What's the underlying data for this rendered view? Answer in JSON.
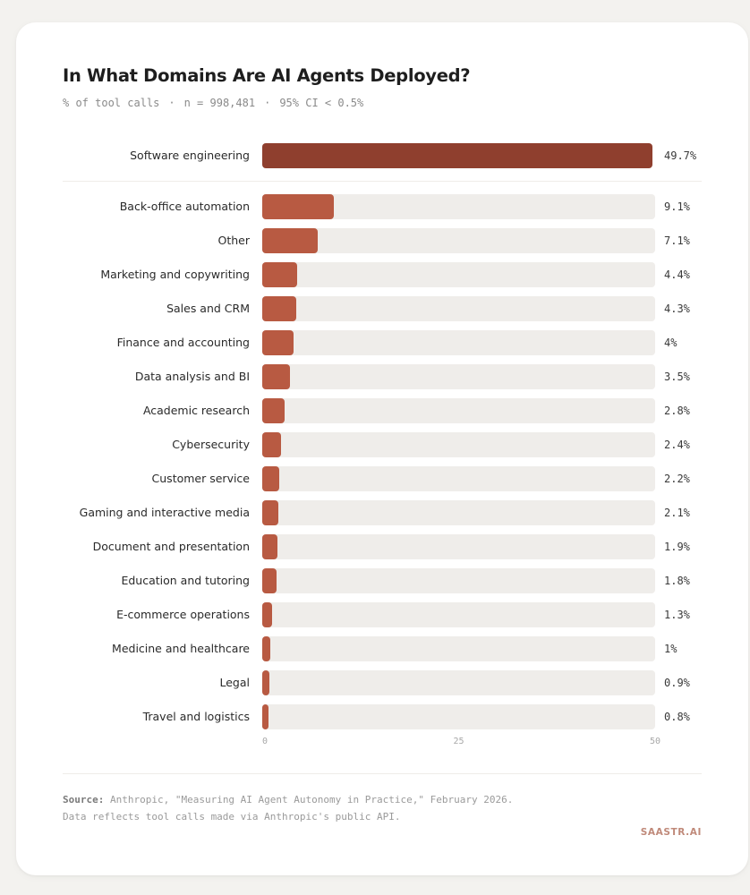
{
  "chart_data": {
    "type": "bar",
    "orientation": "horizontal",
    "title": "In What Domains Are AI Agents Deployed?",
    "subtitle_parts": [
      "% of tool calls",
      "n = 998,481",
      "95% CI < 0.5%"
    ],
    "xlabel": "",
    "ylabel": "",
    "xlim": [
      0,
      50
    ],
    "x_ticks": [
      "0",
      "25",
      "50"
    ],
    "grid": false,
    "highlight_color": "#8f3f2e",
    "bar_color": "#b85a42",
    "track_color": "#efedea",
    "categories": [
      "Software engineering",
      "Back-office automation",
      "Other",
      "Marketing and copywriting",
      "Sales and CRM",
      "Finance and accounting",
      "Data analysis and BI",
      "Academic research",
      "Cybersecurity",
      "Customer service",
      "Gaming and interactive media",
      "Document and presentation",
      "Education and tutoring",
      "E-commerce operations",
      "Medicine and healthcare",
      "Legal",
      "Travel and logistics"
    ],
    "values": [
      49.7,
      9.1,
      7.1,
      4.4,
      4.3,
      4,
      3.5,
      2.8,
      2.4,
      2.2,
      2.1,
      1.9,
      1.8,
      1.3,
      1,
      0.9,
      0.8
    ],
    "value_labels": [
      "49.7%",
      "9.1%",
      "7.1%",
      "4.4%",
      "4.3%",
      "4%",
      "3.5%",
      "2.8%",
      "2.4%",
      "2.2%",
      "2.1%",
      "1.9%",
      "1.8%",
      "1.3%",
      "1%",
      "0.9%",
      "0.8%"
    ],
    "highlighted_index": 0
  },
  "footer": {
    "source_label": "Source:",
    "source_text": "Anthropic, \"Measuring AI Agent Autonomy in Practice,\" February 2026.",
    "note": "Data reflects tool calls made via Anthropic's public API.",
    "brand": "SAASTR.AI"
  }
}
